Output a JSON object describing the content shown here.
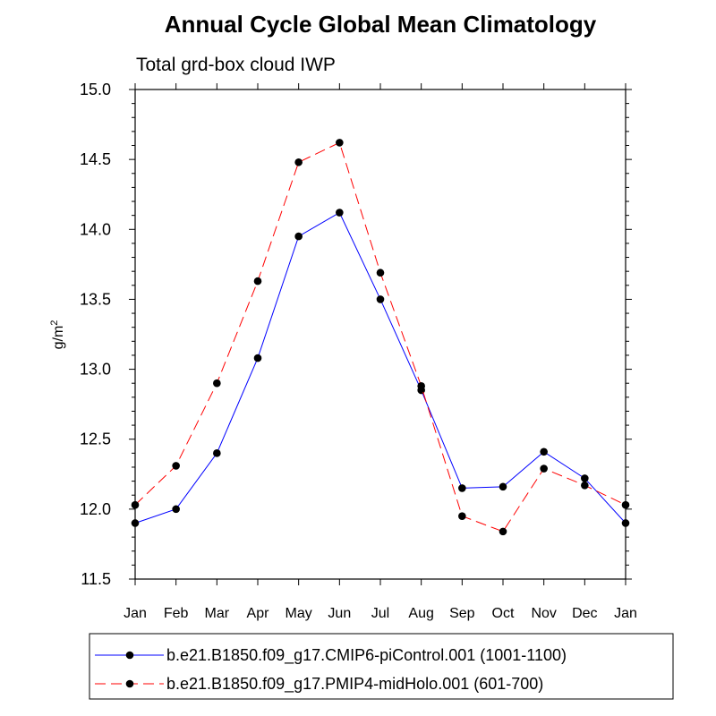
{
  "chart_data": {
    "type": "line",
    "title": "Annual Cycle Global Mean Climatology",
    "subtitle": "Total grd-box cloud IWP",
    "xlabel": "",
    "ylabel": "g/m",
    "ylabel_superscript": "2",
    "ylim": [
      11.5,
      15.0
    ],
    "yticks": [
      "11.5",
      "12.0",
      "12.5",
      "13.0",
      "13.5",
      "14.0",
      "14.5",
      "15.0"
    ],
    "categories": [
      "Jan",
      "Feb",
      "Mar",
      "Apr",
      "May",
      "Jun",
      "Jul",
      "Aug",
      "Sep",
      "Oct",
      "Nov",
      "Dec",
      "Jan"
    ],
    "grid": false,
    "legend_position": "bottom",
    "series": [
      {
        "name": "b.e21.B1850.f09_g17.CMIP6-piControl.001 (1001-1100)",
        "color": "#0000ff",
        "dash": "solid",
        "values": [
          11.9,
          12.0,
          12.4,
          13.08,
          13.95,
          14.12,
          13.5,
          12.85,
          12.15,
          12.16,
          12.41,
          12.22,
          11.9
        ]
      },
      {
        "name": "b.e21.B1850.f09_g17.PMIP4-midHolo.001 (601-700)",
        "color": "#ff0000",
        "dash": "dashed",
        "values": [
          12.03,
          12.31,
          12.9,
          13.63,
          14.48,
          14.62,
          13.69,
          12.88,
          11.95,
          11.84,
          12.29,
          12.17,
          12.03
        ]
      }
    ]
  }
}
